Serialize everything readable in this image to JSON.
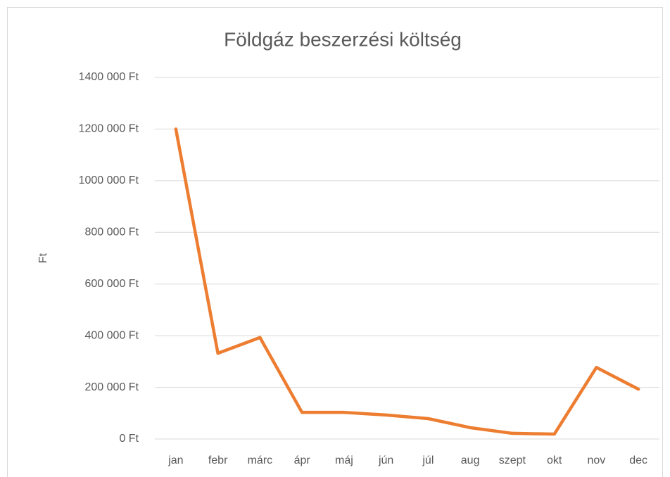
{
  "chart_data": {
    "type": "line",
    "title": "Földgáz beszerzési költség",
    "y_label": "Ft",
    "categories": [
      "jan",
      "febr",
      "márc",
      "ápr",
      "máj",
      "jún",
      "júl",
      "aug",
      "szept",
      "okt",
      "nov",
      "dec"
    ],
    "series": [
      {
        "color": "#ed7d31",
        "values": [
          1200000,
          332000,
          393000,
          103000,
          103000,
          93000,
          79000,
          44000,
          22000,
          19000,
          277000,
          193000
        ]
      }
    ],
    "ylim": [
      0,
      1400000
    ],
    "yticks": [
      {
        "value": 0,
        "label": "0 Ft"
      },
      {
        "value": 200000,
        "label": "200 000 Ft"
      },
      {
        "value": 400000,
        "label": "400 000 Ft"
      },
      {
        "value": 600000,
        "label": "600 000 Ft"
      },
      {
        "value": 800000,
        "label": "800 000 Ft"
      },
      {
        "value": 1000000,
        "label": "1000 000 Ft"
      },
      {
        "value": 1200000,
        "label": "1200 000 Ft"
      },
      {
        "value": 1400000,
        "label": "1400 000 Ft"
      }
    ],
    "grid": true
  }
}
